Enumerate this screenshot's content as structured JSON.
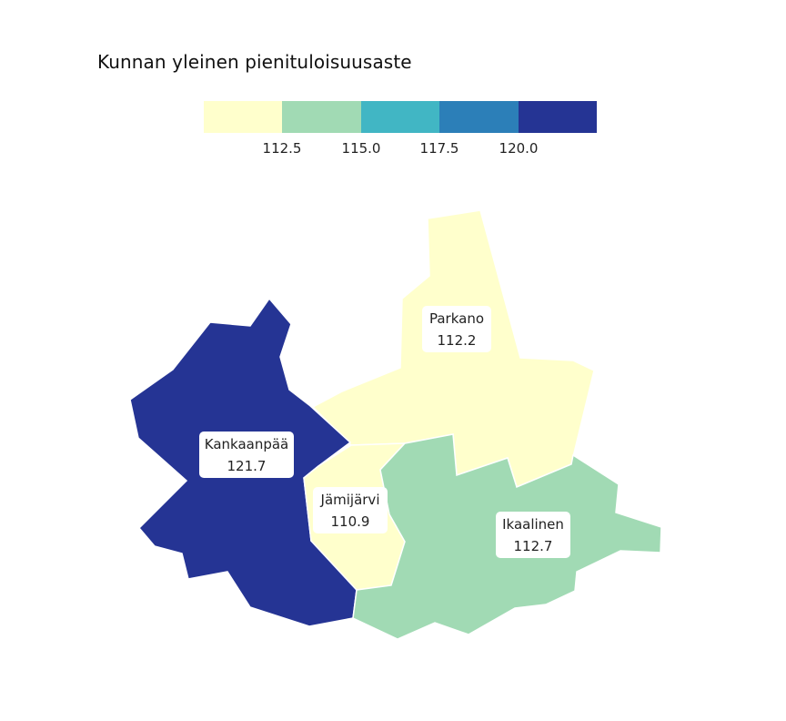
{
  "title": "Kunnan yleinen pienituloisuusaste",
  "legend": {
    "colors": [
      "#ffffcc",
      "#a1dab4",
      "#41b6c4",
      "#2c7fb8",
      "#253494"
    ],
    "tick_labels": [
      "112.5",
      "115.0",
      "117.5",
      "120.0"
    ]
  },
  "regions": [
    {
      "name": "Parkano",
      "value_label": "112.2",
      "value": 112.2,
      "fill": "#ffffcc"
    },
    {
      "name": "Kankaanpää",
      "value_label": "121.7",
      "value": 121.7,
      "fill": "#253494"
    },
    {
      "name": "Jämijärvi",
      "value_label": "110.9",
      "value": 110.9,
      "fill": "#ffffcc"
    },
    {
      "name": "Ikaalinen",
      "value_label": "112.7",
      "value": 112.7,
      "fill": "#a1dab4"
    }
  ]
}
